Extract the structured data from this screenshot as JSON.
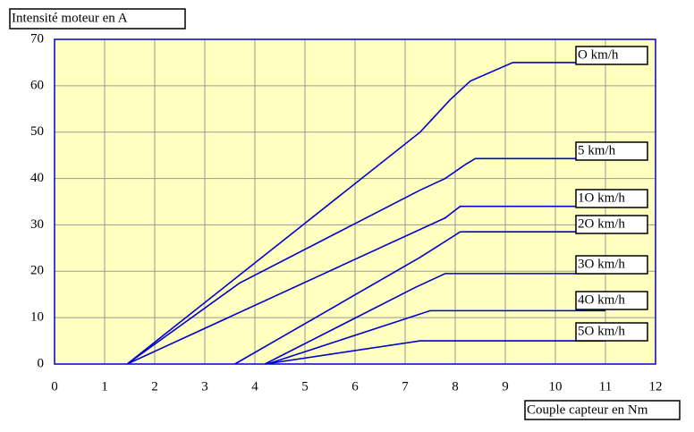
{
  "chart_data": {
    "type": "line",
    "title": "Intensité moteur en A",
    "x_label": "Couple capteur en Nm",
    "xlim": [
      0,
      12
    ],
    "xticks": [
      0,
      1,
      2,
      3,
      4,
      5,
      6,
      7,
      8,
      9,
      10,
      11,
      12
    ],
    "ylim": [
      0,
      70
    ],
    "yticks": [
      0,
      10,
      20,
      30,
      40,
      50,
      60,
      70
    ],
    "grid": true,
    "series": [
      {
        "name": "O km/h",
        "color": "#0000cc",
        "x": [
          1.45,
          7.3,
          7.6,
          7.9,
          8.3,
          9.15,
          11
        ],
        "values": [
          0,
          50,
          53.5,
          57,
          61,
          65,
          65
        ]
      },
      {
        "name": "5 km/h",
        "color": "#0000cc",
        "x": [
          1.45,
          3.7,
          7.3,
          7.8,
          8.2,
          8.4,
          11
        ],
        "values": [
          0,
          17.5,
          37.5,
          40,
          43,
          44.3,
          44.3
        ]
      },
      {
        "name": "1O km/h",
        "color": "#0000cc",
        "x": [
          1.45,
          7.8,
          8.1,
          11
        ],
        "values": [
          0,
          31.5,
          34,
          34
        ]
      },
      {
        "name": "2O km/h",
        "color": "#0000cc",
        "x": [
          3.6,
          7.3,
          8.1,
          11
        ],
        "values": [
          0,
          23,
          28.5,
          28.5
        ]
      },
      {
        "name": "3O km/h",
        "color": "#0000cc",
        "x": [
          4.2,
          7.2,
          7.6,
          7.8,
          11
        ],
        "values": [
          0,
          16.5,
          18.5,
          19.5,
          19.5
        ]
      },
      {
        "name": "4O km/h",
        "color": "#0000cc",
        "x": [
          4.25,
          7.5,
          11
        ],
        "values": [
          0,
          11.5,
          11.5
        ]
      },
      {
        "name": "5O km/h",
        "color": "#0000cc",
        "x": [
          4.2,
          7.3,
          11
        ],
        "values": [
          0,
          5,
          5
        ]
      }
    ]
  }
}
